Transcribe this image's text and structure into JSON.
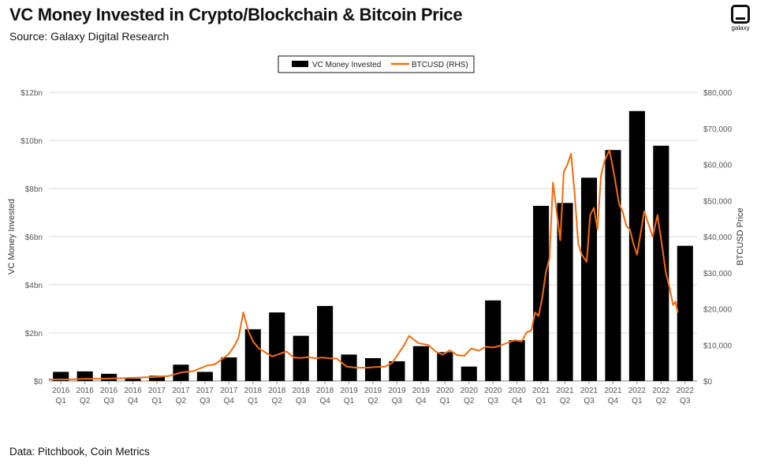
{
  "title": "VC Money Invested in Crypto/Blockchain & Bitcoin Price",
  "subtitle": "Source: Galaxy Digital Research",
  "footer": "Data: Pitchbook, Coin Metrics",
  "logo": {
    "icon": "galaxy-logo-icon",
    "text": "galaxy"
  },
  "colors": {
    "bar": "#000000",
    "line": "#f26b0f",
    "grid": "#d9d9d9"
  },
  "chart_data": {
    "type": "bar",
    "title": "VC Money Invested in Crypto/Blockchain & Bitcoin Price",
    "ylabel": "VC Money Invested",
    "y2label": "BTCUSD Price",
    "ylim": [
      0,
      12
    ],
    "y2lim": [
      0,
      80000
    ],
    "yticks": [
      "$0",
      "$2bn",
      "$4bn",
      "$6bn",
      "$8bn",
      "$10bn",
      "$12bn"
    ],
    "y2ticks": [
      "$0",
      "$10,000",
      "$20,000",
      "$30,000",
      "$40,000",
      "$50,000",
      "$60,000",
      "$70,000",
      "$80,000"
    ],
    "legend": {
      "position": "top-center",
      "entries": [
        "VC Money Invested",
        "BTCUSD (RHS)"
      ]
    },
    "categories": [
      [
        "2016",
        "Q1"
      ],
      [
        "2016",
        "Q2"
      ],
      [
        "2016",
        "Q3"
      ],
      [
        "2016",
        "Q4"
      ],
      [
        "2017",
        "Q1"
      ],
      [
        "2017",
        "Q2"
      ],
      [
        "2017",
        "Q3"
      ],
      [
        "2017",
        "Q4"
      ],
      [
        "2018",
        "Q1"
      ],
      [
        "2018",
        "Q2"
      ],
      [
        "2018",
        "Q3"
      ],
      [
        "2018",
        "Q4"
      ],
      [
        "2019",
        "Q1"
      ],
      [
        "2019",
        "Q2"
      ],
      [
        "2019",
        "Q3"
      ],
      [
        "2019",
        "Q4"
      ],
      [
        "2020",
        "Q1"
      ],
      [
        "2020",
        "Q2"
      ],
      [
        "2020",
        "Q3"
      ],
      [
        "2020",
        "Q4"
      ],
      [
        "2021",
        "Q1"
      ],
      [
        "2021",
        "Q2"
      ],
      [
        "2021",
        "Q3"
      ],
      [
        "2021",
        "Q4"
      ],
      [
        "2022",
        "Q1"
      ],
      [
        "2022",
        "Q2"
      ],
      [
        "2022",
        "Q3"
      ]
    ],
    "series": [
      {
        "name": "VC Money Invested",
        "type": "bar",
        "axis": "left",
        "values": [
          0.38,
          0.4,
          0.3,
          0.1,
          0.22,
          0.68,
          0.38,
          0.98,
          2.15,
          2.85,
          1.88,
          3.12,
          1.1,
          0.95,
          0.82,
          1.45,
          1.2,
          0.6,
          3.35,
          1.7,
          7.28,
          7.4,
          8.45,
          9.6,
          11.22,
          9.78,
          5.62
        ]
      },
      {
        "name": "BTCUSD (RHS)",
        "type": "line",
        "axis": "right",
        "x": [
          0.0,
          0.5,
          1.0,
          1.5,
          2.0,
          2.5,
          3.0,
          3.5,
          4.0,
          4.5,
          5.0,
          5.3,
          5.6,
          6.0,
          6.3,
          6.6,
          6.9,
          7.2,
          7.5,
          7.75,
          7.9,
          8.1,
          8.3,
          8.5,
          8.75,
          9.0,
          9.3,
          9.6,
          9.9,
          10.2,
          10.5,
          10.8,
          11.1,
          11.4,
          11.7,
          12.0,
          12.4,
          12.8,
          13.2,
          13.6,
          14.0,
          14.3,
          14.6,
          14.8,
          15.0,
          15.4,
          15.8,
          16.1,
          16.4,
          16.7,
          17.0,
          17.3,
          17.6,
          17.9,
          18.2,
          18.5,
          18.8,
          19.1,
          19.4,
          19.7,
          19.9,
          20.1,
          20.25,
          20.4,
          20.55,
          20.7,
          20.85,
          21.0,
          21.15,
          21.3,
          21.45,
          21.6,
          21.75,
          21.9,
          22.05,
          22.2,
          22.4,
          22.55,
          22.7,
          22.85,
          23.0,
          23.15,
          23.35,
          23.55,
          23.75,
          23.9,
          24.05,
          24.2,
          24.35,
          24.5,
          24.65,
          24.8,
          24.95,
          25.15,
          25.35,
          25.55,
          25.7,
          25.85,
          26.0,
          26.1,
          26.2
        ],
        "values": [
          430,
          420,
          450,
          590,
          620,
          680,
          760,
          900,
          1000,
          1150,
          1400,
          2000,
          2500,
          2700,
          3500,
          4300,
          4600,
          6000,
          7500,
          10000,
          12000,
          19000,
          14000,
          11000,
          9000,
          8000,
          6800,
          7500,
          8200,
          6500,
          6400,
          6600,
          6300,
          6500,
          6300,
          6200,
          4000,
          3700,
          3700,
          3900,
          4000,
          5000,
          8000,
          10000,
          12500,
          10500,
          10000,
          8200,
          7300,
          8500,
          7200,
          7000,
          9000,
          8400,
          9500,
          9300,
          9800,
          10600,
          11300,
          11000,
          13500,
          14000,
          19000,
          18000,
          23000,
          30000,
          34000,
          55000,
          47000,
          39000,
          58000,
          60000,
          63000,
          52000,
          38000,
          35000,
          33000,
          46000,
          48000,
          42000,
          57000,
          61000,
          64000,
          57000,
          49000,
          47000,
          43000,
          42000,
          38000,
          35000,
          41000,
          47000,
          44000,
          40000,
          46000,
          37000,
          30000,
          26000,
          21000,
          22000,
          19000
        ]
      }
    ]
  }
}
